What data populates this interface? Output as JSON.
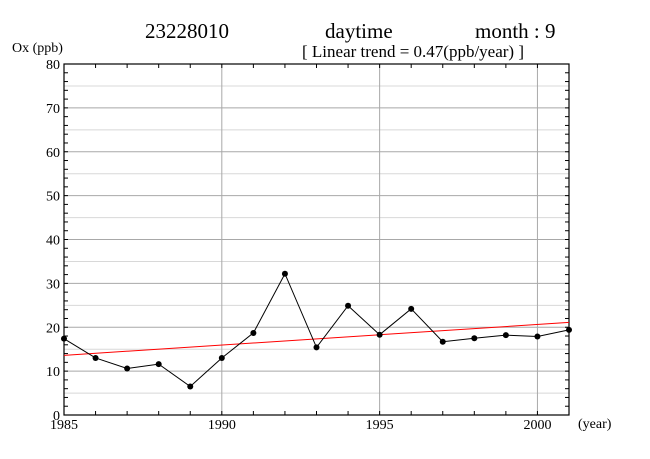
{
  "header": {
    "station": "23228010",
    "period": "daytime",
    "month_label": "month : 9",
    "trend_label": "[ Linear trend = 0.47(ppb/year) ]"
  },
  "chart_data": {
    "type": "line",
    "title": "",
    "xlabel": "(year)",
    "ylabel": "Ox (ppb)",
    "xlim": [
      1985,
      2001
    ],
    "ylim": [
      0,
      80
    ],
    "x_ticks": [
      1985,
      1990,
      1995,
      2000
    ],
    "y_ticks": [
      0,
      10,
      20,
      30,
      40,
      50,
      60,
      70,
      80
    ],
    "grid": true,
    "x": [
      1985,
      1986,
      1987,
      1988,
      1989,
      1990,
      1991,
      1992,
      1993,
      1994,
      1995,
      1996,
      1997,
      1998,
      1999,
      2000,
      2001
    ],
    "series": [
      {
        "values": [
          17.4,
          13.0,
          10.6,
          11.6,
          6.5,
          13.0,
          18.7,
          32.2,
          15.4,
          24.9,
          18.3,
          24.2,
          16.7,
          17.5,
          18.2,
          17.9,
          19.4
        ],
        "color": "#000000"
      }
    ],
    "trend": {
      "slope": 0.47,
      "x": [
        1985,
        2001
      ],
      "values": [
        13.6,
        21.1
      ],
      "color": "#ff0000"
    }
  }
}
